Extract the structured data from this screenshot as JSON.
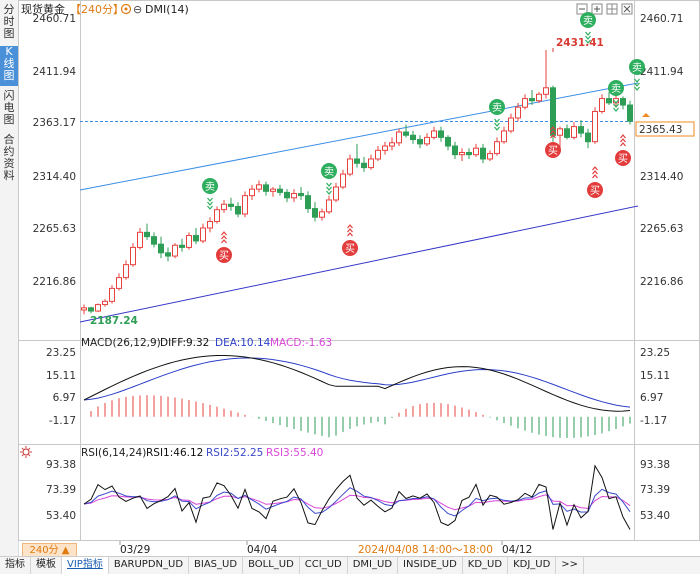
{
  "side_tabs": [
    {
      "id": "tab-fs",
      "label": [
        "分",
        "时",
        "图"
      ]
    },
    {
      "id": "tab-k",
      "label": [
        "K",
        "线",
        "图"
      ]
    },
    {
      "id": "tab-sd",
      "label": [
        "闪",
        "电",
        "图"
      ]
    },
    {
      "id": "tab-hy",
      "label": [
        "合",
        "约",
        "资",
        "料"
      ]
    }
  ],
  "header": {
    "symbol": "现货黄金",
    "period": "【240分】",
    "indicator": "DMI(14)"
  },
  "price_axis": {
    "ticks": [
      "2460.71",
      "2411.94",
      "2363.17",
      "2314.40",
      "2265.63",
      "2216.86"
    ],
    "tick_values": [
      2460.71,
      2411.94,
      2363.17,
      2314.4,
      2265.63,
      2216.86
    ],
    "last_price": "2365.43",
    "high_label": "2431.41",
    "low_label": "2187.24"
  },
  "signals": {
    "buy": "买",
    "sell": "卖"
  },
  "macd": {
    "label": "MACD(26,12,9)",
    "diff": "DIFF:9.32",
    "dea": "DEA:10.14",
    "macd": "MACD:-1.63",
    "ticks": [
      "23.25",
      "15.11",
      "6.97",
      "-1.17"
    ],
    "tick_values": [
      23.25,
      15.11,
      6.97,
      -1.17
    ]
  },
  "rsi": {
    "label": "RSI(6,14,24)",
    "rsi1": "RSI1:46.12",
    "rsi2": "RSI2:52.25",
    "rsi3": "RSI3:55.40",
    "ticks": [
      "93.38",
      "73.39",
      "53.40"
    ],
    "tick_values": [
      93.38,
      73.39,
      53.4
    ]
  },
  "time_axis": {
    "labels": [
      "03/29",
      "04/04",
      "04/12"
    ],
    "crosshair": "2024/04/08 14:00～18:00"
  },
  "period_badge": "240分 ▲",
  "bottom_tabs": [
    "指标",
    "模板",
    "VIP指标",
    "BARUPDN_UD",
    "BIAS_UD",
    "BOLL_UD",
    "CCI_UD",
    "DMI_UD",
    "INSIDE_UD",
    "KD_UD",
    "KDJ_UD",
    ">>"
  ],
  "colors": {
    "up": "#e8423f",
    "down": "#2e9e57",
    "channel_upper": "#3a8ee6",
    "channel_lower": "#3535c8",
    "dif": "#111111",
    "dea": "#2b3fc8",
    "rsi1": "#111111",
    "rsi2": "#3a49c9",
    "rsi3": "#d946d9",
    "price_tag": "#f08a1f"
  },
  "chart_data": {
    "type": "candlestick",
    "ohlc": [
      [
        2190,
        2195,
        2186,
        2192
      ],
      [
        2192,
        2193,
        2187,
        2189
      ],
      [
        2189,
        2196,
        2188,
        2195
      ],
      [
        2195,
        2200,
        2193,
        2198
      ],
      [
        2198,
        2213,
        2196,
        2210
      ],
      [
        2210,
        2224,
        2208,
        2220
      ],
      [
        2220,
        2236,
        2218,
        2232
      ],
      [
        2232,
        2252,
        2230,
        2248
      ],
      [
        2248,
        2266,
        2246,
        2262
      ],
      [
        2262,
        2270,
        2255,
        2258
      ],
      [
        2258,
        2262,
        2248,
        2251
      ],
      [
        2251,
        2258,
        2238,
        2243
      ],
      [
        2243,
        2248,
        2235,
        2240
      ],
      [
        2240,
        2252,
        2238,
        2250
      ],
      [
        2250,
        2256,
        2244,
        2248
      ],
      [
        2248,
        2262,
        2246,
        2259
      ],
      [
        2259,
        2266,
        2251,
        2254
      ],
      [
        2254,
        2270,
        2252,
        2266
      ],
      [
        2266,
        2276,
        2262,
        2272
      ],
      [
        2272,
        2286,
        2270,
        2283
      ],
      [
        2283,
        2292,
        2280,
        2288
      ],
      [
        2288,
        2294,
        2282,
        2286
      ],
      [
        2286,
        2290,
        2276,
        2279
      ],
      [
        2279,
        2300,
        2276,
        2296
      ],
      [
        2296,
        2306,
        2292,
        2302
      ],
      [
        2302,
        2310,
        2299,
        2306
      ],
      [
        2306,
        2309,
        2296,
        2300
      ],
      [
        2300,
        2304,
        2295,
        2302
      ],
      [
        2302,
        2306,
        2296,
        2299
      ],
      [
        2299,
        2302,
        2290,
        2294
      ],
      [
        2294,
        2302,
        2290,
        2298
      ],
      [
        2298,
        2304,
        2292,
        2296
      ],
      [
        2296,
        2300,
        2280,
        2284
      ],
      [
        2284,
        2290,
        2272,
        2276
      ],
      [
        2276,
        2284,
        2273,
        2281
      ],
      [
        2281,
        2296,
        2279,
        2292
      ],
      [
        2292,
        2308,
        2290,
        2304
      ],
      [
        2304,
        2320,
        2302,
        2316
      ],
      [
        2316,
        2334,
        2314,
        2330
      ],
      [
        2330,
        2344,
        2322,
        2326
      ],
      [
        2326,
        2332,
        2318,
        2322
      ],
      [
        2322,
        2334,
        2320,
        2330
      ],
      [
        2330,
        2342,
        2328,
        2338
      ],
      [
        2338,
        2346,
        2334,
        2342
      ],
      [
        2342,
        2350,
        2338,
        2345
      ],
      [
        2345,
        2358,
        2342,
        2355
      ],
      [
        2355,
        2362,
        2350,
        2352
      ],
      [
        2352,
        2356,
        2344,
        2348
      ],
      [
        2348,
        2352,
        2340,
        2344
      ],
      [
        2344,
        2354,
        2342,
        2350
      ],
      [
        2350,
        2360,
        2348,
        2356
      ],
      [
        2356,
        2360,
        2346,
        2350
      ],
      [
        2350,
        2352,
        2338,
        2342
      ],
      [
        2342,
        2346,
        2330,
        2334
      ],
      [
        2334,
        2340,
        2328,
        2336
      ],
      [
        2336,
        2340,
        2330,
        2334
      ],
      [
        2334,
        2344,
        2332,
        2340
      ],
      [
        2340,
        2344,
        2326,
        2330
      ],
      [
        2330,
        2338,
        2328,
        2335
      ],
      [
        2335,
        2350,
        2333,
        2346
      ],
      [
        2346,
        2360,
        2344,
        2356
      ],
      [
        2356,
        2372,
        2354,
        2368
      ],
      [
        2368,
        2382,
        2365,
        2378
      ],
      [
        2378,
        2390,
        2376,
        2386
      ],
      [
        2386,
        2394,
        2380,
        2384
      ],
      [
        2384,
        2392,
        2382,
        2390
      ],
      [
        2390,
        2431,
        2386,
        2396
      ],
      [
        2396,
        2398,
        2346,
        2352
      ],
      [
        2352,
        2360,
        2340,
        2358
      ],
      [
        2358,
        2362,
        2348,
        2350
      ],
      [
        2350,
        2364,
        2348,
        2360
      ],
      [
        2360,
        2366,
        2350,
        2354
      ],
      [
        2354,
        2358,
        2340,
        2346
      ],
      [
        2346,
        2378,
        2344,
        2374
      ],
      [
        2374,
        2390,
        2372,
        2386
      ],
      [
        2386,
        2392,
        2380,
        2382
      ],
      [
        2382,
        2392,
        2378,
        2386
      ],
      [
        2386,
        2388,
        2376,
        2380
      ],
      [
        2380,
        2384,
        2362,
        2365
      ]
    ]
  }
}
